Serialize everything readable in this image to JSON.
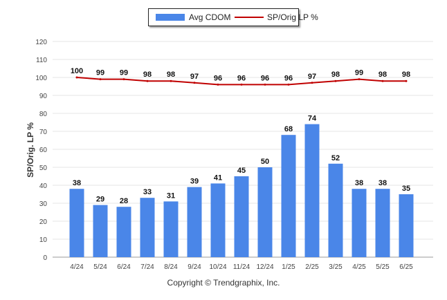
{
  "legend": {
    "bar_label": "Avg CDOM",
    "line_label": "SP/Orig LP %"
  },
  "ylabel": "SP/Orig. LP %",
  "copyright": "Copyright © Trendgraphix, Inc.",
  "colors": {
    "bar": "#4a86e8",
    "line": "#c00000",
    "grid": "#e6e6e6"
  },
  "chart_data": {
    "type": "bar",
    "categories": [
      "4/24",
      "5/24",
      "6/24",
      "7/24",
      "8/24",
      "9/24",
      "10/24",
      "11/24",
      "12/24",
      "1/25",
      "2/25",
      "3/25",
      "4/25",
      "5/25",
      "6/25"
    ],
    "series": [
      {
        "name": "Avg CDOM",
        "type": "bar",
        "values": [
          38,
          29,
          28,
          33,
          31,
          39,
          41,
          45,
          50,
          68,
          74,
          52,
          38,
          38,
          35
        ]
      },
      {
        "name": "SP/Orig LP %",
        "type": "line",
        "values": [
          100,
          99,
          99,
          98,
          98,
          97,
          96,
          96,
          96,
          96,
          97,
          98,
          99,
          98,
          98
        ]
      }
    ],
    "ylabel": "SP/Orig. LP %",
    "ylim": [
      0,
      120
    ],
    "yticks": [
      0,
      10,
      20,
      30,
      40,
      50,
      60,
      70,
      80,
      90,
      100,
      110,
      120
    ],
    "grid": true,
    "legend": "top-center"
  }
}
